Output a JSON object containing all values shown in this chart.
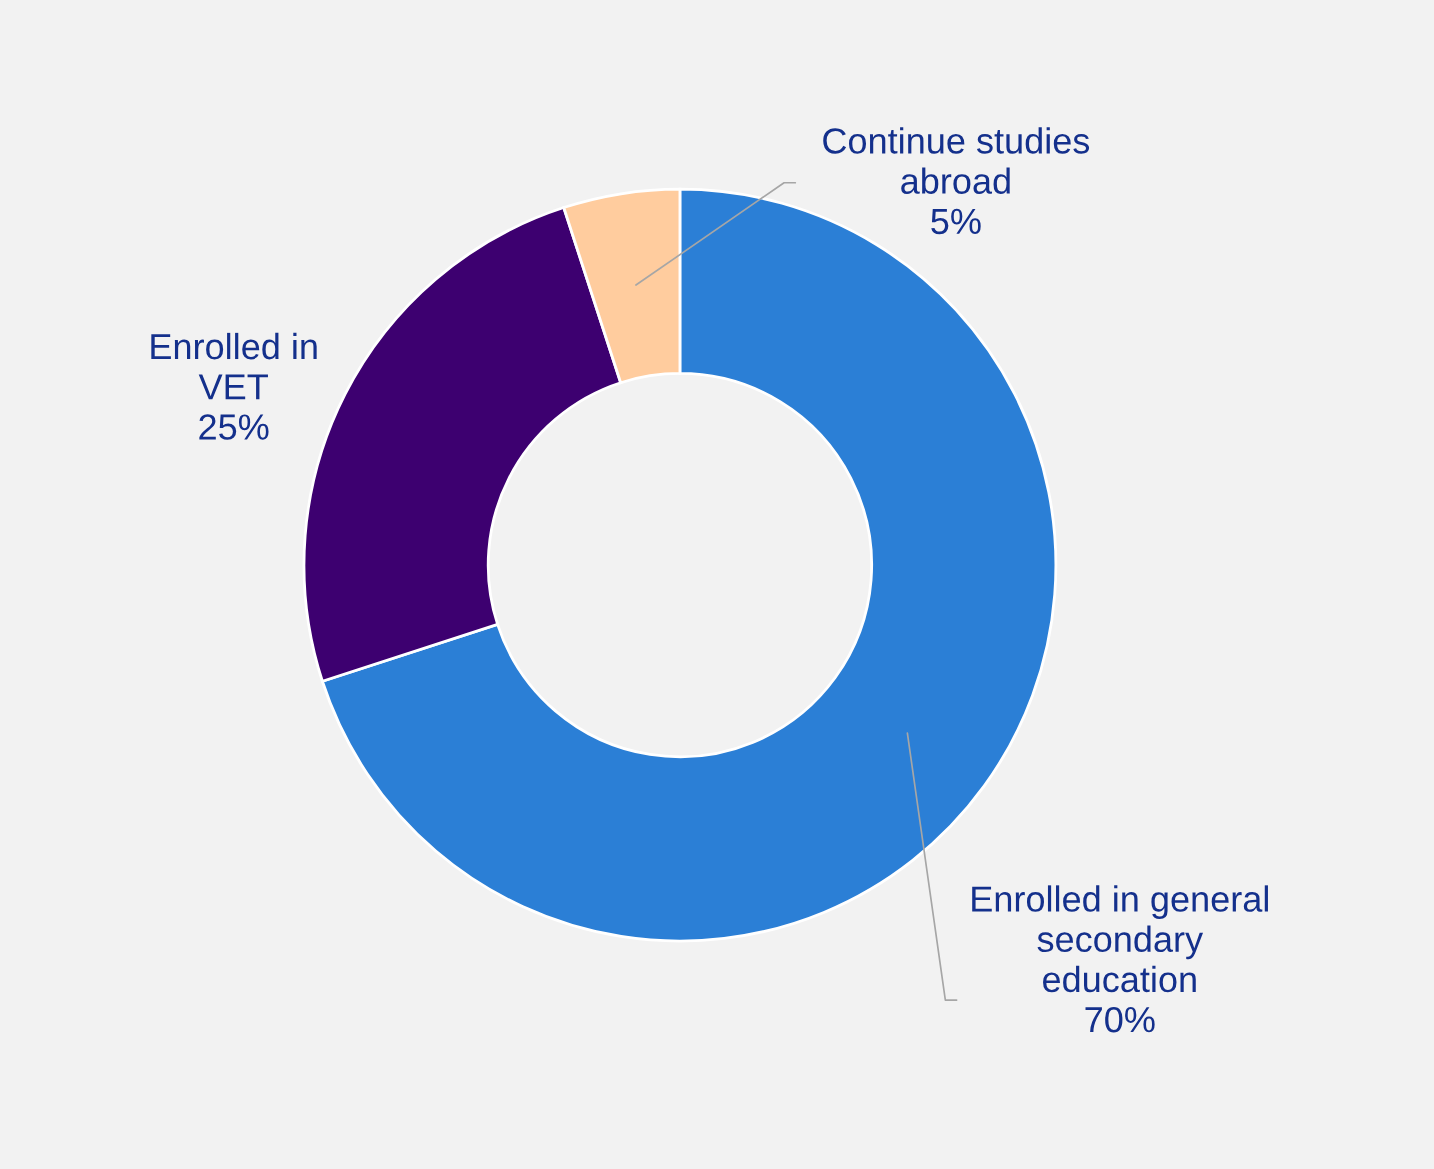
{
  "chart_data": {
    "type": "donut",
    "categories": [
      "Enrolled in general\nsecondary\neducation",
      "Enrolled in\nVET",
      "Continue studies\nabroad"
    ],
    "values": [
      70,
      25,
      5
    ],
    "value_labels": [
      "70%",
      "25%",
      "5%"
    ],
    "colors": [
      "#2b7fd6",
      "#3d0070",
      "#ffcc9e"
    ],
    "legend": false
  }
}
